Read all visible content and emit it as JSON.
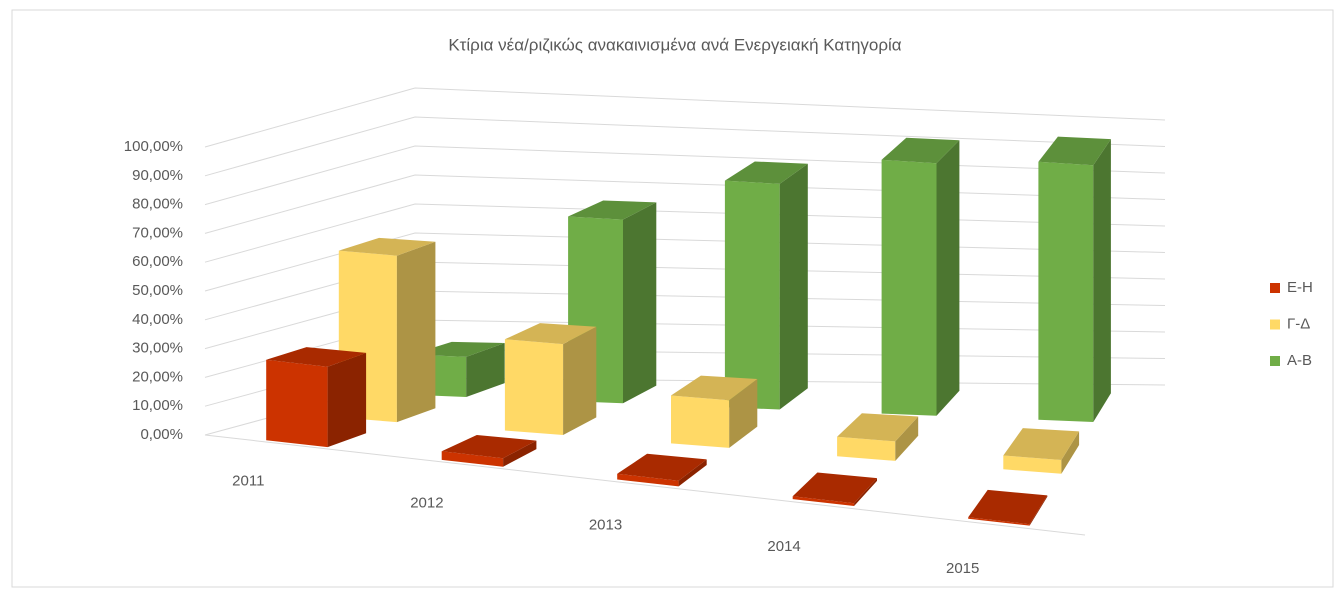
{
  "chart_data": {
    "type": "bar3d",
    "title": "Κτίρια νέα/ριζικώς ανακαινισμένα ανά Ενεργειακή Κατηγορία",
    "categories": [
      "2011",
      "2012",
      "2013",
      "2014",
      "2015"
    ],
    "series": [
      {
        "name": "Ε-Η",
        "color": "#cc3300",
        "values": [
          28,
          3,
          2,
          1,
          0.5
        ]
      },
      {
        "name": "Γ-Δ",
        "color": "#ffd966",
        "values": [
          58,
          32,
          17,
          7,
          5
        ]
      },
      {
        "name": "Α-Β",
        "color": "#70ad47",
        "values": [
          14,
          65,
          81,
          92,
          95
        ]
      }
    ],
    "ylim": [
      0,
      100
    ],
    "yticks": [
      {
        "value": 0,
        "label": "0,00%"
      },
      {
        "value": 10,
        "label": "10,00%"
      },
      {
        "value": 20,
        "label": "20,00%"
      },
      {
        "value": 30,
        "label": "30,00%"
      },
      {
        "value": 40,
        "label": "40,00%"
      },
      {
        "value": 50,
        "label": "50,00%"
      },
      {
        "value": 60,
        "label": "60,00%"
      },
      {
        "value": 70,
        "label": "70,00%"
      },
      {
        "value": 80,
        "label": "80,00%"
      },
      {
        "value": 90,
        "label": "90,00%"
      },
      {
        "value": 100,
        "label": "100,00%"
      }
    ],
    "grid": true,
    "legend": "right"
  }
}
